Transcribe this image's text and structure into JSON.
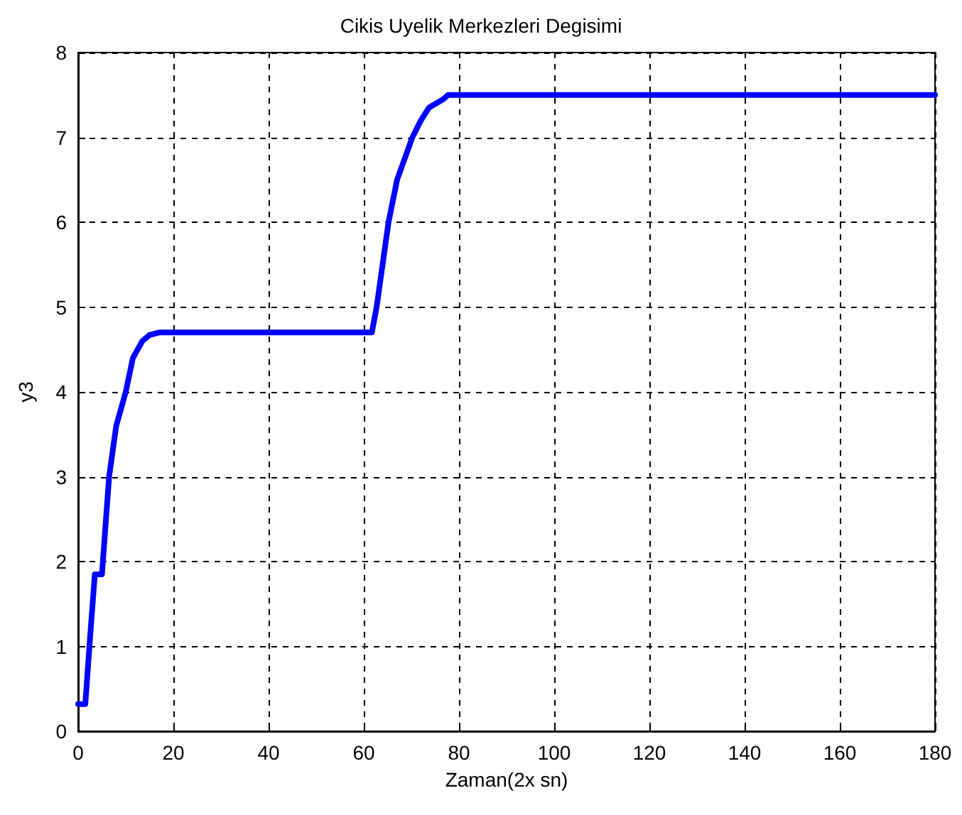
{
  "chart_data": {
    "type": "line",
    "title": "Cikis Uyelik Merkezleri Degisimi",
    "xlabel": "Zaman(2x sn)",
    "ylabel": "y3",
    "x": [
      0,
      1.5,
      2.5,
      3.5,
      5,
      6.5,
      8,
      10,
      11.5,
      13.5,
      15,
      17,
      61.7,
      62.7,
      65.2,
      67,
      70.2,
      72,
      73.7,
      76.7,
      77.7,
      180
    ],
    "series": [
      {
        "color": "#0000ff",
        "values": [
          0.32,
          0.32,
          1.1,
          1.85,
          1.85,
          3,
          3.6,
          4,
          4.4,
          4.6,
          4.67,
          4.7,
          4.7,
          5,
          6,
          6.5,
          7,
          7.2,
          7.35,
          7.45,
          7.5,
          7.5
        ]
      }
    ],
    "xlim": [
      0,
      180
    ],
    "xticks": [
      0,
      20,
      40,
      60,
      80,
      100,
      120,
      140,
      160,
      180
    ],
    "ylim": [
      0,
      8
    ],
    "yticks": [
      0,
      1,
      2,
      3,
      4,
      5,
      6,
      7,
      8
    ],
    "grid": true,
    "marker": "none",
    "line_style": "solid"
  }
}
